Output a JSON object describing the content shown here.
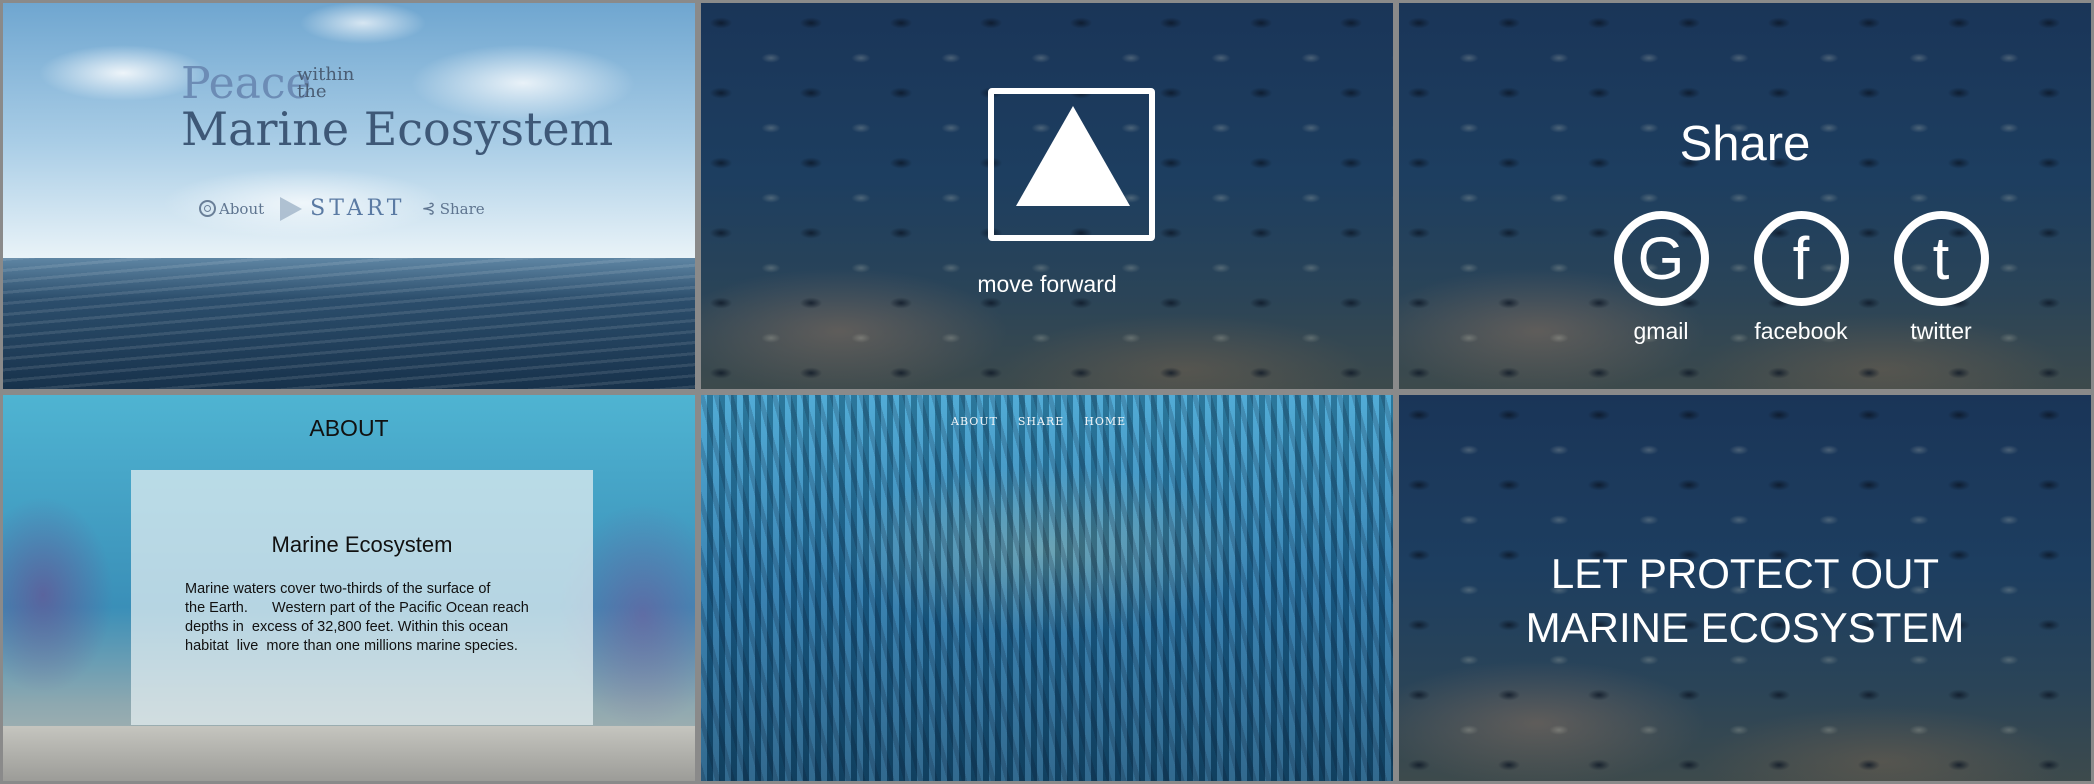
{
  "panel1": {
    "title_peace": "Peace",
    "title_within": "within",
    "title_the": "the",
    "title_marine": "Marine Ecosystem",
    "nav": {
      "about": "About",
      "start": "START",
      "share": "Share"
    }
  },
  "panel2": {
    "button_label": "move forward"
  },
  "panel3": {
    "title": "Share",
    "networks": [
      {
        "glyph": "G",
        "label": "gmail"
      },
      {
        "glyph": "f",
        "label": "facebook"
      },
      {
        "glyph": "t",
        "label": "twitter"
      }
    ]
  },
  "panel4": {
    "heading": "ABOUT",
    "card_title": "Marine Ecosystem",
    "card_body_lines": [
      "Marine waters cover two-thirds of the surface of",
      "the Earth.      Western part of the Pacific Ocean reach",
      "depths in  excess of 32,800 feet. Within this ocean",
      "habitat  live  more than one millions marine species."
    ]
  },
  "panel5": {
    "nav": [
      "ABOUT",
      "SHARE",
      "HOME"
    ]
  },
  "panel6": {
    "line1": "LET PROTECT OUT",
    "line2": "MARINE ECOSYSTEM"
  }
}
